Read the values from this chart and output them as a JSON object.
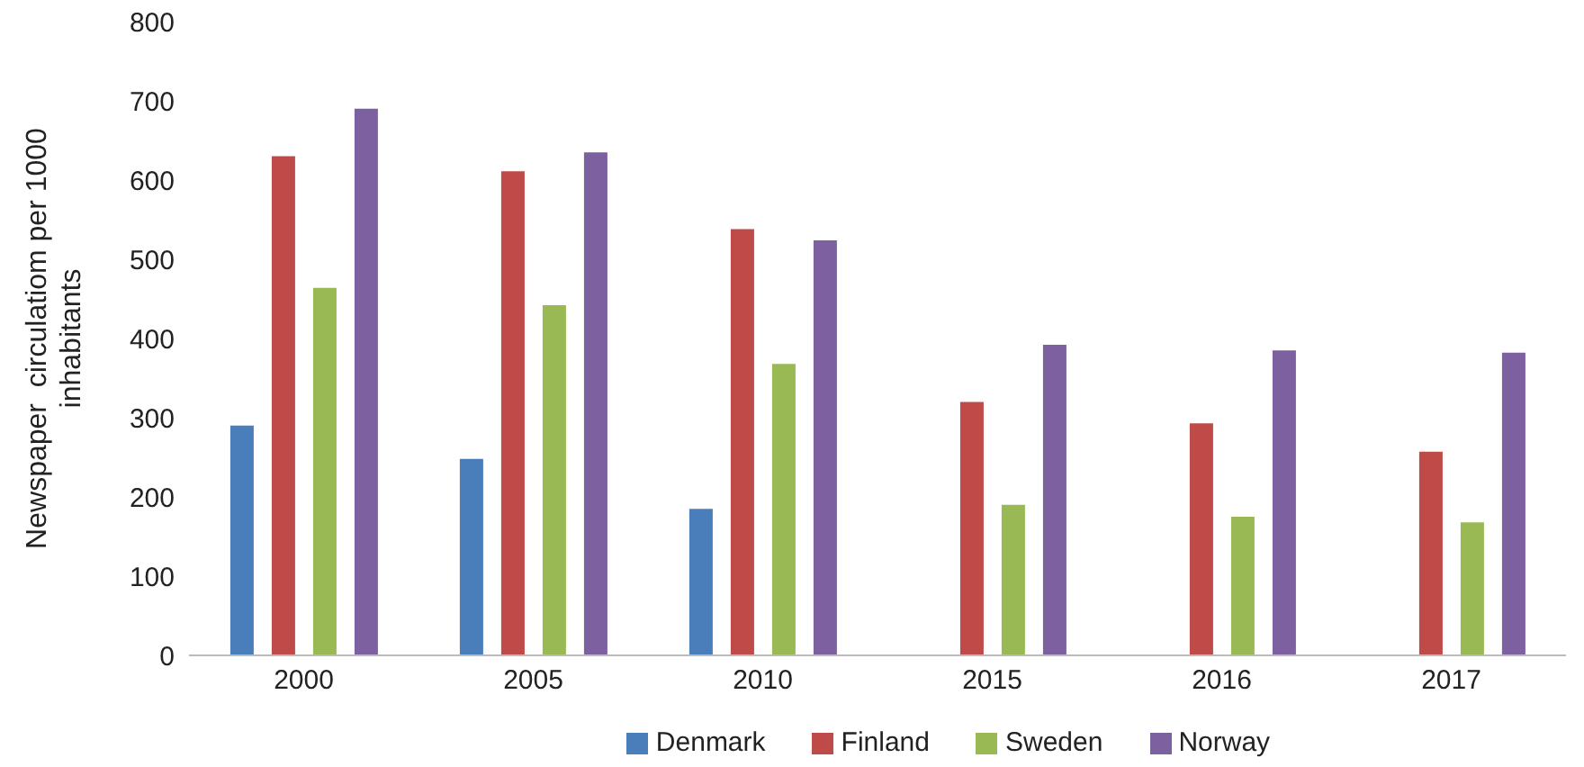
{
  "chart_data": {
    "type": "bar",
    "ylabel": "Newspaper  circulatiom per 1000 inhabitants",
    "categories": [
      "2000",
      "2005",
      "2010",
      "2015",
      "2016",
      "2017"
    ],
    "series": [
      {
        "name": "Denmark",
        "color": "#4a7ebb",
        "values": [
          290,
          248,
          185,
          null,
          null,
          null
        ]
      },
      {
        "name": "Finland",
        "color": "#be4b48",
        "values": [
          630,
          611,
          538,
          320,
          293,
          257
        ]
      },
      {
        "name": "Sweden",
        "color": "#98b954",
        "values": [
          464,
          442,
          368,
          190,
          175,
          168
        ]
      },
      {
        "name": "Norway",
        "color": "#7d60a0",
        "values": [
          690,
          635,
          524,
          392,
          385,
          382
        ]
      }
    ],
    "ylim": [
      0,
      800
    ],
    "yticks": [
      0,
      100,
      200,
      300,
      400,
      500,
      600,
      700,
      800
    ],
    "grid": false,
    "legend": "bottom"
  }
}
